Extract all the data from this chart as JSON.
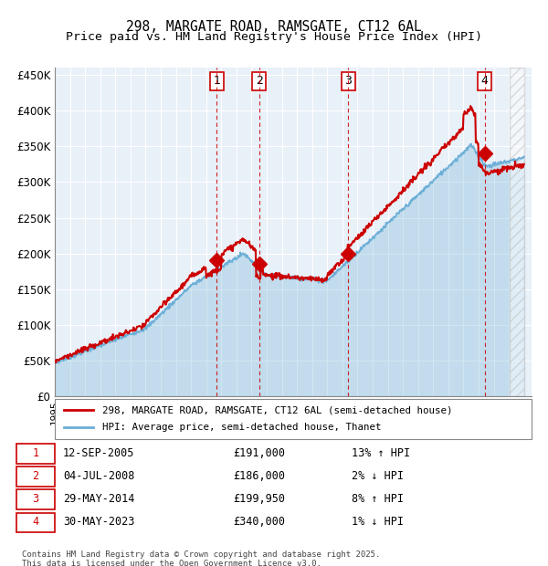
{
  "title1": "298, MARGATE ROAD, RAMSGATE, CT12 6AL",
  "title2": "Price paid vs. HM Land Registry's House Price Index (HPI)",
  "hpi_color": "#6baed6",
  "price_color": "#cc0000",
  "bg_color": "#ddeeff",
  "plot_bg": "#e8f0f8",
  "grid_color": "#ffffff",
  "ylim": [
    0,
    460000
  ],
  "yticks": [
    0,
    50000,
    100000,
    150000,
    200000,
    250000,
    300000,
    350000,
    400000,
    450000
  ],
  "ytick_labels": [
    "£0",
    "£50K",
    "£100K",
    "£150K",
    "£200K",
    "£250K",
    "£300K",
    "£350K",
    "£400K",
    "£450K"
  ],
  "xmin": 1995.0,
  "xmax": 2026.5,
  "sale_dates": [
    2005.7,
    2008.5,
    2014.4,
    2023.4
  ],
  "sale_prices": [
    191000,
    186000,
    199950,
    340000
  ],
  "sale_labels": [
    "1",
    "2",
    "3",
    "4"
  ],
  "legend_line1": "298, MARGATE ROAD, RAMSGATE, CT12 6AL (semi-detached house)",
  "legend_line2": "HPI: Average price, semi-detached house, Thanet",
  "table_entries": [
    [
      "1",
      "12-SEP-2005",
      "£191,000",
      "13% ↑ HPI"
    ],
    [
      "2",
      "04-JUL-2008",
      "£186,000",
      "2% ↓ HPI"
    ],
    [
      "3",
      "29-MAY-2014",
      "£199,950",
      "8% ↑ HPI"
    ],
    [
      "4",
      "30-MAY-2023",
      "£340,000",
      "1% ↓ HPI"
    ]
  ],
  "footer": "Contains HM Land Registry data © Crown copyright and database right 2025.\nThis data is licensed under the Open Government Licence v3.0.",
  "hatch_color": "#cccccc"
}
